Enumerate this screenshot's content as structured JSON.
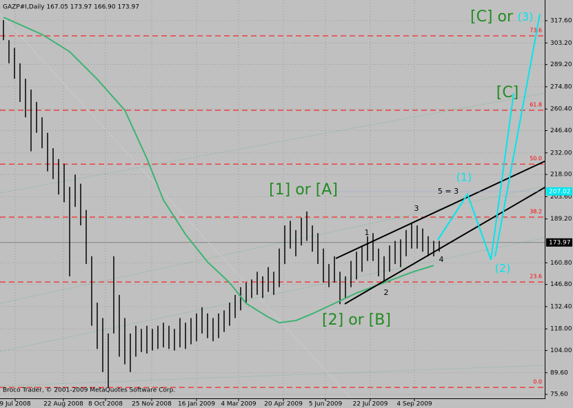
{
  "chart_data": {
    "type": "ohlc",
    "header": "GAZP#I,Daily  167.05 173.97 166.90 173.97",
    "footer": "Broco Trader, © 2001-2009 MetaQuotes Software Corp.",
    "ylim": [
      73,
      331
    ],
    "yticks": [
      {
        "value": 317.6,
        "label": "317.60"
      },
      {
        "value": 303.2,
        "label": "303.20"
      },
      {
        "value": 289.2,
        "label": "289.20"
      },
      {
        "value": 274.8,
        "label": "274.80"
      },
      {
        "value": 260.4,
        "label": "260.40"
      },
      {
        "value": 246.4,
        "label": "246.40"
      },
      {
        "value": 232,
        "label": "232.00"
      },
      {
        "value": 218,
        "label": "218.00"
      },
      {
        "value": 203.6,
        "label": "203.60"
      },
      {
        "value": 189.2,
        "label": "189.20"
      },
      {
        "value": 160.8,
        "label": "160.80"
      },
      {
        "value": 146.8,
        "label": "146.80"
      },
      {
        "value": 132.4,
        "label": "132.40"
      },
      {
        "value": 118,
        "label": "118.00"
      },
      {
        "value": 104,
        "label": "104.00"
      },
      {
        "value": 89.6,
        "label": "89.60"
      },
      {
        "value": 75.6,
        "label": "75.60"
      }
    ],
    "xticks": [
      "9 Jul 2008",
      "22 Aug 2008",
      "8 Oct 2008",
      "25 Nov 2008",
      "16 Jan 2009",
      "4 Mar 2009",
      "20 Apr 2009",
      "5 Jun 2009",
      "22 Jul 2009",
      "4 Sep 2009"
    ],
    "grid": true,
    "color": "#000000",
    "bars": {
      "high": [
        318,
        305,
        300,
        290,
        280,
        273,
        265,
        255,
        245,
        235,
        228,
        225,
        210,
        218,
        212,
        195,
        165,
        135,
        125,
        115,
        165,
        140,
        125,
        115,
        120,
        118,
        120,
        118,
        120,
        122,
        120,
        118,
        125,
        122,
        125,
        128,
        132,
        128,
        125,
        128,
        130,
        135,
        140,
        145,
        148,
        150,
        155,
        152,
        158,
        155,
        170,
        185,
        188,
        182,
        190,
        194,
        185,
        180,
        170,
        160,
        165,
        155,
        152,
        162,
        168,
        172,
        178,
        180,
        170,
        165,
        172,
        175,
        176,
        182,
        186,
        185,
        183,
        178,
        175,
        175
      ],
      "low": [
        305,
        290,
        280,
        265,
        255,
        233,
        245,
        235,
        220,
        215,
        205,
        200,
        152,
        197,
        185,
        160,
        120,
        105,
        90,
        80,
        115,
        100,
        95,
        90,
        100,
        103,
        102,
        104,
        105,
        106,
        105,
        104,
        106,
        105,
        108,
        110,
        115,
        112,
        110,
        112,
        116,
        120,
        125,
        130,
        135,
        138,
        140,
        138,
        142,
        140,
        145,
        160,
        170,
        165,
        172,
        175,
        168,
        160,
        148,
        145,
        148,
        134,
        138,
        145,
        150,
        155,
        162,
        162,
        152,
        148,
        155,
        160,
        158,
        165,
        170,
        170,
        168,
        165,
        165,
        168
      ]
    },
    "ma": {
      "color": "#3cb371",
      "x": [
        0,
        7,
        12,
        17,
        22,
        26,
        29,
        33,
        37,
        41,
        44,
        48,
        50,
        53,
        56,
        60,
        64,
        69,
        74,
        78
      ],
      "values": [
        319.8,
        308.7,
        297.5,
        279.7,
        259.6,
        228.3,
        201.5,
        179.2,
        161.3,
        147.9,
        134.5,
        125.6,
        122.0,
        123.4,
        127.8,
        134.5,
        141.2,
        147.9,
        154.6,
        159.1
      ]
    },
    "fib": [
      {
        "label": "0.0",
        "price": 80.1
      },
      {
        "label": "23.6",
        "price": 148.4
      },
      {
        "label": "38.2",
        "price": 190.4
      },
      {
        "label": "50.0",
        "price": 224.7
      },
      {
        "label": "61.8",
        "price": 259.6
      },
      {
        "label": "73.6",
        "price": 307.8
      }
    ],
    "current_price": 173.97,
    "marked_price": 207.02,
    "annotations": {
      "wave_1A": "[1] or [A]",
      "wave_2B": "[2] or [B]",
      "wave_C_or": "[C] or",
      "wave_3": "(3)",
      "wave_C": "[C]",
      "wave_1": "(1)",
      "wave_2": "(2)",
      "ratio": "5 = 3",
      "sub_1": "1",
      "sub_2": "2",
      "sub_3": "3",
      "sub_4": "4"
    }
  }
}
